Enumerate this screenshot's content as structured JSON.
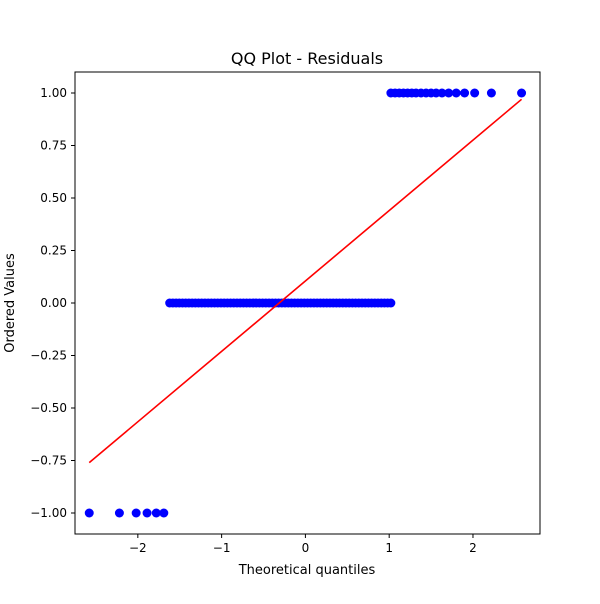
{
  "chart_data": {
    "type": "scatter",
    "title": "QQ Plot - Residuals",
    "xlabel": "Theoretical quantiles",
    "ylabel": "Ordered Values",
    "xlim": [
      -2.75,
      2.8
    ],
    "ylim": [
      -1.1,
      1.1
    ],
    "x_ticks": [
      -2,
      -1,
      0,
      1,
      2
    ],
    "x_tick_labels": [
      "−2",
      "−1",
      "0",
      "1",
      "2"
    ],
    "y_ticks": [
      -1.0,
      -0.75,
      -0.5,
      -0.25,
      0.0,
      0.25,
      0.5,
      0.75,
      1.0
    ],
    "y_tick_labels": [
      "−1.00",
      "−0.75",
      "−0.50",
      "−0.25",
      "0.00",
      "0.25",
      "0.50",
      "0.75",
      "1.00"
    ],
    "grid": false,
    "series": [
      {
        "kind": "points",
        "color": "#0000ff",
        "groups": [
          {
            "y": -1.0,
            "x": [
              -2.58,
              -2.22,
              -2.02,
              -1.89,
              -1.78,
              -1.69
            ]
          },
          {
            "y": 0.0,
            "x_range": [
              -1.62,
              1.02
            ],
            "count": 70
          },
          {
            "y": 1.0,
            "x": [
              1.02,
              1.07,
              1.12,
              1.17,
              1.22,
              1.27,
              1.32,
              1.38,
              1.44,
              1.5,
              1.56,
              1.63,
              1.71,
              1.8,
              1.9,
              2.02,
              2.22,
              2.58
            ]
          }
        ]
      },
      {
        "kind": "line",
        "color": "#ff0000",
        "x": [
          -2.58,
          2.58
        ],
        "y": [
          -0.76,
          0.97
        ]
      }
    ]
  }
}
